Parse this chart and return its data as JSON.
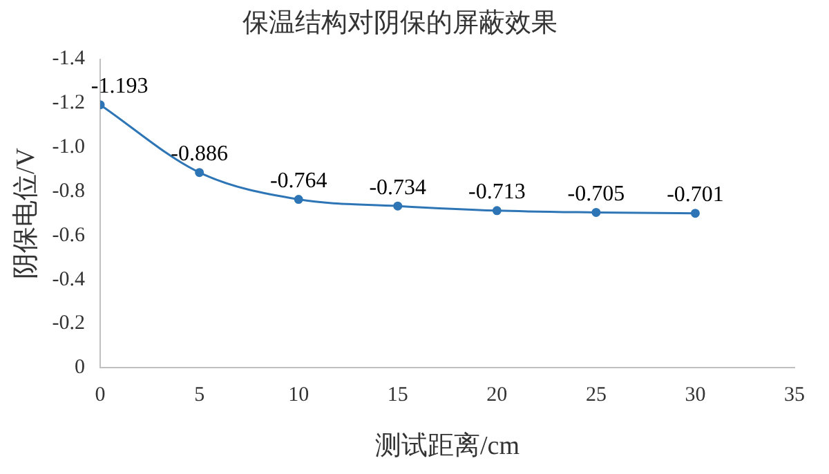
{
  "chart_data": {
    "type": "line",
    "title": "保温结构对阴保的屏蔽效果",
    "xlabel": "测试距离/cm",
    "ylabel": "阴保电位/V",
    "x": [
      0,
      5,
      10,
      15,
      20,
      25,
      30
    ],
    "series": [
      {
        "color": "#2e75b6",
        "values": [
          -1.193,
          -0.886,
          -0.764,
          -0.734,
          -0.713,
          -0.705,
          -0.701
        ]
      }
    ],
    "xlim": [
      0,
      35
    ],
    "xticks": [
      0,
      5,
      10,
      15,
      20,
      25,
      30,
      35
    ],
    "ylim": [
      0,
      -1.4
    ],
    "yticks": [
      0,
      -0.2,
      -0.4,
      -0.6,
      -0.8,
      {
        "value": -1,
        "label": "-1.0"
      },
      -1.2,
      -1.4
    ],
    "data_labels": true,
    "marker": "circle",
    "grid": false,
    "legend": false
  }
}
